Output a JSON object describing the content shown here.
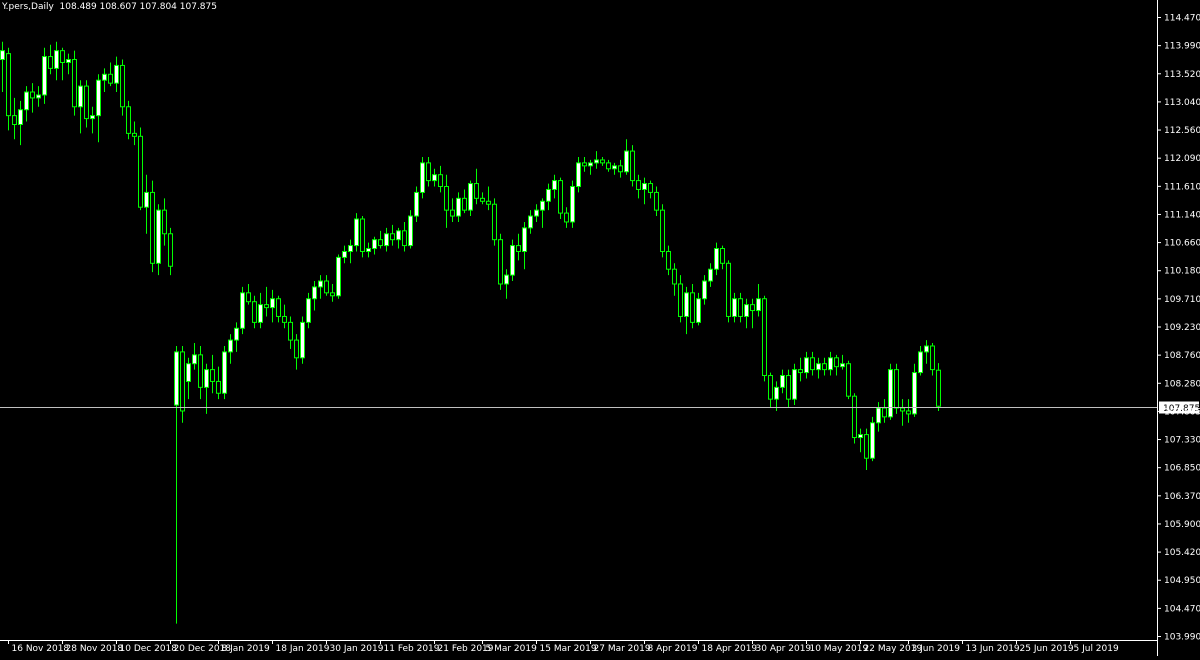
{
  "chart_info": "Y.pers,Daily  108.489 108.607 107.804 107.875",
  "colors": {
    "background": "#000000",
    "axis": "#ffffff",
    "bull_body": "#ffffff",
    "bear_body": "#000000",
    "wick": "#00ff00",
    "bid_line": "#c0c0c0",
    "bid_label_bg": "#ffffff",
    "bid_label_text": "#000000"
  },
  "chart_data": {
    "type": "candlestick",
    "ylim": [
      103.99,
      114.7
    ],
    "y_ticks": [
      "114.470",
      "113.990",
      "113.520",
      "113.040",
      "112.560",
      "112.090",
      "111.610",
      "111.140",
      "110.660",
      "110.180",
      "109.710",
      "109.230",
      "108.760",
      "108.280",
      "107.805",
      "107.330",
      "106.850",
      "106.370",
      "105.900",
      "105.420",
      "104.950",
      "104.470",
      "103.990"
    ],
    "x_ticks": [
      {
        "label": "16 Nov 2018",
        "index": 1
      },
      {
        "label": "28 Nov 2018",
        "index": 10
      },
      {
        "label": "10 Dec 2018",
        "index": 19
      },
      {
        "label": "20 Dec 2018",
        "index": 28
      },
      {
        "label": "8 Jan 2019",
        "index": 36
      },
      {
        "label": "18 Jan 2019",
        "index": 45
      },
      {
        "label": "30 Jan 2019",
        "index": 54
      },
      {
        "label": "11 Feb 2019",
        "index": 63
      },
      {
        "label": "21 Feb 2019",
        "index": 72
      },
      {
        "label": "5 Mar 2019",
        "index": 80
      },
      {
        "label": "15 Mar 2019",
        "index": 89
      },
      {
        "label": "27 Mar 2019",
        "index": 98
      },
      {
        "label": "8 Apr 2019",
        "index": 107
      },
      {
        "label": "18 Apr 2019",
        "index": 116
      },
      {
        "label": "30 Apr 2019",
        "index": 125
      },
      {
        "label": "10 May 2019",
        "index": 134
      },
      {
        "label": "22 May 2019",
        "index": 143
      },
      {
        "label": "3 Jun 2019",
        "index": 151
      },
      {
        "label": "13 Jun 2019",
        "index": 160
      },
      {
        "label": "25 Jun 2019",
        "index": 169
      },
      {
        "label": "5 Jul 2019",
        "index": 178
      }
    ],
    "bid_price": 107.875,
    "bid_label": "107.875",
    "ohlc": [
      [
        113.75,
        114.05,
        113.2,
        113.9
      ],
      [
        113.85,
        113.95,
        112.55,
        112.8
      ],
      [
        112.8,
        113.1,
        112.4,
        112.65
      ],
      [
        112.65,
        113.05,
        112.3,
        112.9
      ],
      [
        112.9,
        113.3,
        112.7,
        113.2
      ],
      [
        113.2,
        113.35,
        112.85,
        113.1
      ],
      [
        113.1,
        113.3,
        112.95,
        113.15
      ],
      [
        113.15,
        113.95,
        113.0,
        113.8
      ],
      [
        113.8,
        114.0,
        113.5,
        113.6
      ],
      [
        113.6,
        114.05,
        113.4,
        113.9
      ],
      [
        113.9,
        113.95,
        113.4,
        113.7
      ],
      [
        113.7,
        113.85,
        113.5,
        113.75
      ],
      [
        113.75,
        113.9,
        112.8,
        112.95
      ],
      [
        112.95,
        113.4,
        112.5,
        113.3
      ],
      [
        113.3,
        113.4,
        112.6,
        112.75
      ],
      [
        112.75,
        112.95,
        112.5,
        112.8
      ],
      [
        112.8,
        113.5,
        112.35,
        113.4
      ],
      [
        113.4,
        113.6,
        113.2,
        113.5
      ],
      [
        113.5,
        113.7,
        113.3,
        113.35
      ],
      [
        113.35,
        113.8,
        113.2,
        113.65
      ],
      [
        113.65,
        113.75,
        112.8,
        112.95
      ],
      [
        112.95,
        113.05,
        112.4,
        112.5
      ],
      [
        112.5,
        112.7,
        112.3,
        112.45
      ],
      [
        112.45,
        112.6,
        111.2,
        111.25
      ],
      [
        111.25,
        111.8,
        110.8,
        111.5
      ],
      [
        111.5,
        111.7,
        110.15,
        110.3
      ],
      [
        110.3,
        111.3,
        110.1,
        111.2
      ],
      [
        111.2,
        111.4,
        110.6,
        110.8
      ],
      [
        110.8,
        110.9,
        110.1,
        110.25
      ],
      [
        107.9,
        108.9,
        104.2,
        108.8
      ],
      [
        108.8,
        108.9,
        107.6,
        107.8
      ],
      [
        108.3,
        108.7,
        108.0,
        108.6
      ],
      [
        108.6,
        108.95,
        108.5,
        108.75
      ],
      [
        108.75,
        108.9,
        108.0,
        108.2
      ],
      [
        108.2,
        108.6,
        107.75,
        108.5
      ],
      [
        108.5,
        108.75,
        108.1,
        108.3
      ],
      [
        108.3,
        108.55,
        108.0,
        108.1
      ],
      [
        108.1,
        108.9,
        108.0,
        108.8
      ],
      [
        108.8,
        109.1,
        108.6,
        109.0
      ],
      [
        109.0,
        109.3,
        108.8,
        109.2
      ],
      [
        109.2,
        109.9,
        109.1,
        109.8
      ],
      [
        109.8,
        109.95,
        109.6,
        109.65
      ],
      [
        109.65,
        109.75,
        109.2,
        109.3
      ],
      [
        109.3,
        109.8,
        109.2,
        109.6
      ],
      [
        109.6,
        109.9,
        109.4,
        109.55
      ],
      [
        109.55,
        109.85,
        109.3,
        109.7
      ],
      [
        109.7,
        109.75,
        109.3,
        109.4
      ],
      [
        109.4,
        109.6,
        109.2,
        109.3
      ],
      [
        109.3,
        109.4,
        108.85,
        109.0
      ],
      [
        109.0,
        109.1,
        108.5,
        108.7
      ],
      [
        108.7,
        109.4,
        108.6,
        109.3
      ],
      [
        109.3,
        109.8,
        109.2,
        109.7
      ],
      [
        109.7,
        110.0,
        109.5,
        109.9
      ],
      [
        109.9,
        110.1,
        109.7,
        110.0
      ],
      [
        110.0,
        110.1,
        109.75,
        109.8
      ],
      [
        109.8,
        109.95,
        109.65,
        109.75
      ],
      [
        109.75,
        110.45,
        109.7,
        110.4
      ],
      [
        110.4,
        110.6,
        110.3,
        110.5
      ],
      [
        110.5,
        110.7,
        110.3,
        110.6
      ],
      [
        110.6,
        111.15,
        110.5,
        111.05
      ],
      [
        111.05,
        111.1,
        110.4,
        110.5
      ],
      [
        110.5,
        110.65,
        110.4,
        110.55
      ],
      [
        110.55,
        110.75,
        110.45,
        110.7
      ],
      [
        110.7,
        110.85,
        110.55,
        110.6
      ],
      [
        110.6,
        110.9,
        110.5,
        110.8
      ],
      [
        110.8,
        110.95,
        110.6,
        110.7
      ],
      [
        110.7,
        110.9,
        110.55,
        110.85
      ],
      [
        110.85,
        111.0,
        110.5,
        110.6
      ],
      [
        110.6,
        111.2,
        110.55,
        111.1
      ],
      [
        111.1,
        111.6,
        111.0,
        111.5
      ],
      [
        111.5,
        112.1,
        111.4,
        112.0
      ],
      [
        112.0,
        112.1,
        111.6,
        111.7
      ],
      [
        111.7,
        111.9,
        111.6,
        111.8
      ],
      [
        111.8,
        111.95,
        111.5,
        111.6
      ],
      [
        111.6,
        111.8,
        110.9,
        111.2
      ],
      [
        111.2,
        111.4,
        111.0,
        111.1
      ],
      [
        111.1,
        111.5,
        111.0,
        111.4
      ],
      [
        111.4,
        111.55,
        111.15,
        111.2
      ],
      [
        111.2,
        111.7,
        111.1,
        111.65
      ],
      [
        111.65,
        111.9,
        111.3,
        111.4
      ],
      [
        111.4,
        111.5,
        111.3,
        111.35
      ],
      [
        111.35,
        111.6,
        111.2,
        111.3
      ],
      [
        111.3,
        111.4,
        110.6,
        110.7
      ],
      [
        110.7,
        110.8,
        109.85,
        109.95
      ],
      [
        109.95,
        110.2,
        109.7,
        110.1
      ],
      [
        110.1,
        110.7,
        110.0,
        110.6
      ],
      [
        110.6,
        110.8,
        110.35,
        110.5
      ],
      [
        110.5,
        111.0,
        110.2,
        110.9
      ],
      [
        110.9,
        111.2,
        110.8,
        111.1
      ],
      [
        111.1,
        111.3,
        111.0,
        111.2
      ],
      [
        111.2,
        111.4,
        110.9,
        111.35
      ],
      [
        111.35,
        111.65,
        111.2,
        111.55
      ],
      [
        111.55,
        111.8,
        111.4,
        111.7
      ],
      [
        111.7,
        111.75,
        111.05,
        111.15
      ],
      [
        111.15,
        111.25,
        110.9,
        111.0
      ],
      [
        111.0,
        111.7,
        110.9,
        111.6
      ],
      [
        111.6,
        112.1,
        111.5,
        112.0
      ],
      [
        112.0,
        112.1,
        111.85,
        111.95
      ],
      [
        111.95,
        112.05,
        111.8,
        112.0
      ],
      [
        112.0,
        112.2,
        111.9,
        112.05
      ],
      [
        112.05,
        112.1,
        111.95,
        112.0
      ],
      [
        112.0,
        112.05,
        111.85,
        111.9
      ],
      [
        111.9,
        112.0,
        111.8,
        111.95
      ],
      [
        111.95,
        112.05,
        111.75,
        111.85
      ],
      [
        111.85,
        112.4,
        111.8,
        112.2
      ],
      [
        112.2,
        112.3,
        111.6,
        111.7
      ],
      [
        111.7,
        111.8,
        111.4,
        111.55
      ],
      [
        111.55,
        111.75,
        111.3,
        111.65
      ],
      [
        111.65,
        111.7,
        111.4,
        111.5
      ],
      [
        111.5,
        111.6,
        111.1,
        111.2
      ],
      [
        111.2,
        111.3,
        110.4,
        110.5
      ],
      [
        110.5,
        110.6,
        110.1,
        110.2
      ],
      [
        110.2,
        110.3,
        109.75,
        109.95
      ],
      [
        109.95,
        110.1,
        109.3,
        109.4
      ],
      [
        109.4,
        109.9,
        109.1,
        109.8
      ],
      [
        109.8,
        109.95,
        109.2,
        109.3
      ],
      [
        109.3,
        109.8,
        109.25,
        109.7
      ],
      [
        109.7,
        110.1,
        109.6,
        110.0
      ],
      [
        110.0,
        110.3,
        109.9,
        110.2
      ],
      [
        110.2,
        110.65,
        110.1,
        110.55
      ],
      [
        110.55,
        110.6,
        110.2,
        110.3
      ],
      [
        110.3,
        110.35,
        109.3,
        109.4
      ],
      [
        109.4,
        109.8,
        109.3,
        109.7
      ],
      [
        109.7,
        109.8,
        109.3,
        109.4
      ],
      [
        109.4,
        109.7,
        109.2,
        109.6
      ],
      [
        109.6,
        109.7,
        109.2,
        109.5
      ],
      [
        109.5,
        109.95,
        109.4,
        109.7
      ],
      [
        109.7,
        109.75,
        108.3,
        108.4
      ],
      [
        108.4,
        108.45,
        107.85,
        108.0
      ],
      [
        108.0,
        108.3,
        107.8,
        108.2
      ],
      [
        108.2,
        108.5,
        108.1,
        108.4
      ],
      [
        108.4,
        108.5,
        107.85,
        108.0
      ],
      [
        108.0,
        108.6,
        107.9,
        108.5
      ],
      [
        108.5,
        108.7,
        108.3,
        108.45
      ],
      [
        108.45,
        108.8,
        108.35,
        108.7
      ],
      [
        108.7,
        108.8,
        108.4,
        108.5
      ],
      [
        108.5,
        108.7,
        108.35,
        108.6
      ],
      [
        108.6,
        108.7,
        108.4,
        108.5
      ],
      [
        108.5,
        108.8,
        108.4,
        108.7
      ],
      [
        108.7,
        108.75,
        108.4,
        108.55
      ],
      [
        108.55,
        108.75,
        108.5,
        108.6
      ],
      [
        108.6,
        108.65,
        108.0,
        108.05
      ],
      [
        108.05,
        108.1,
        107.25,
        107.35
      ],
      [
        107.35,
        107.5,
        107.1,
        107.4
      ],
      [
        107.4,
        107.5,
        106.8,
        107.0
      ],
      [
        107.0,
        107.7,
        106.95,
        107.6
      ],
      [
        107.6,
        107.95,
        107.45,
        107.85
      ],
      [
        107.85,
        108.0,
        107.6,
        107.7
      ],
      [
        107.7,
        108.6,
        107.65,
        108.5
      ],
      [
        108.5,
        108.6,
        107.75,
        107.85
      ],
      [
        107.85,
        108.0,
        107.55,
        107.8
      ],
      [
        107.8,
        108.0,
        107.6,
        107.75
      ],
      [
        107.75,
        108.6,
        107.7,
        108.45
      ],
      [
        108.45,
        108.9,
        108.4,
        108.8
      ],
      [
        108.8,
        109.0,
        108.6,
        108.9
      ],
      [
        108.9,
        108.95,
        108.4,
        108.5
      ],
      [
        108.49,
        108.61,
        107.8,
        107.88
      ]
    ]
  }
}
